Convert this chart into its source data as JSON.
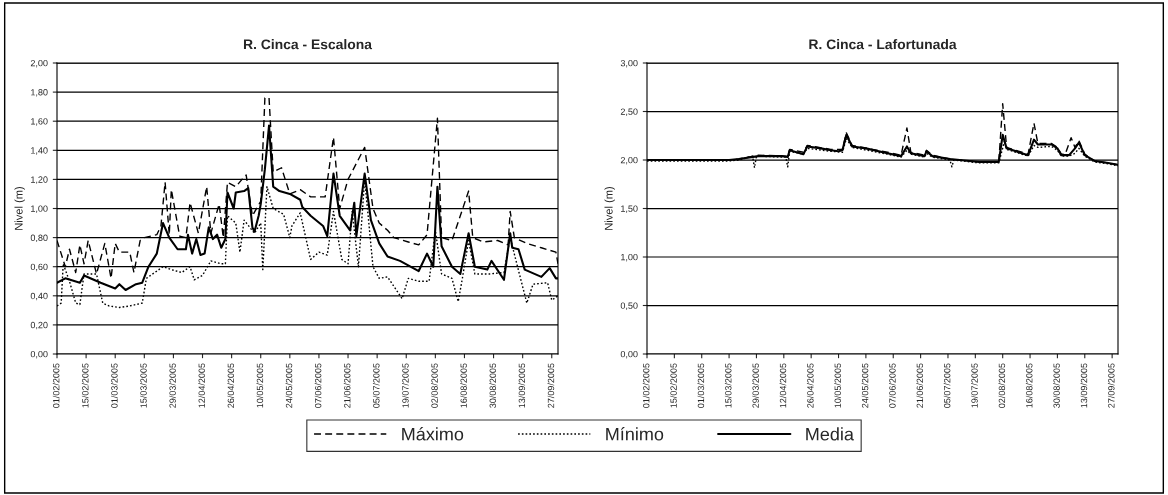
{
  "chart_data": [
    {
      "type": "line",
      "title": "R. Cinca - Escalona",
      "ylabel": "Nivel (m)",
      "legend": "bottom",
      "grid": "y",
      "xlim": [
        "2005-02-01",
        "2005-09-30"
      ],
      "xticks": [
        {
          "value": "2005-02-01",
          "label": "01/02/2005"
        },
        {
          "value": "2005-02-15",
          "label": "15/02/2005"
        },
        {
          "value": "2005-03-01",
          "label": "01/03/2005"
        },
        {
          "value": "2005-03-15",
          "label": "15/03/2005"
        },
        {
          "value": "2005-03-29",
          "label": "29/03/2005"
        },
        {
          "value": "2005-04-12",
          "label": "12/04/2005"
        },
        {
          "value": "2005-04-26",
          "label": "26/04/2005"
        },
        {
          "value": "2005-05-10",
          "label": "10/05/2005"
        },
        {
          "value": "2005-05-24",
          "label": "24/05/2005"
        },
        {
          "value": "2005-06-07",
          "label": "07/06/2005"
        },
        {
          "value": "2005-06-21",
          "label": "21/06/2005"
        },
        {
          "value": "2005-07-05",
          "label": "05/07/2005"
        },
        {
          "value": "2005-07-19",
          "label": "19/07/2005"
        },
        {
          "value": "2005-08-02",
          "label": "02/08/2005"
        },
        {
          "value": "2005-08-16",
          "label": "16/08/2005"
        },
        {
          "value": "2005-08-30",
          "label": "30/08/2005"
        },
        {
          "value": "2005-09-13",
          "label": "13/09/2005"
        },
        {
          "value": "2005-09-27",
          "label": "27/09/2005"
        }
      ],
      "ylim": [
        0,
        2
      ],
      "yticks": [
        {
          "value": 0,
          "label": "0,00"
        },
        {
          "value": 0.2,
          "label": "0,20"
        },
        {
          "value": 0.4,
          "label": "0,40"
        },
        {
          "value": 0.6,
          "label": "0,60"
        },
        {
          "value": 0.8,
          "label": "0,80"
        },
        {
          "value": 1.0,
          "label": "1,00"
        },
        {
          "value": 1.2,
          "label": "1,20"
        },
        {
          "value": 1.4,
          "label": "1,40"
        },
        {
          "value": 1.6,
          "label": "1,60"
        },
        {
          "value": 1.8,
          "label": "1,80"
        },
        {
          "value": 2.0,
          "label": "2,00"
        }
      ],
      "series": [
        {
          "name": "Máximo",
          "color": "#000000",
          "line_style": "dashed",
          "x": [
            "2005-02-01",
            "2005-02-05",
            "2005-02-07",
            "2005-02-10",
            "2005-02-12",
            "2005-02-14",
            "2005-02-16",
            "2005-02-20",
            "2005-02-24",
            "2005-02-27",
            "2005-03-01",
            "2005-03-03",
            "2005-03-08",
            "2005-03-10",
            "2005-03-13",
            "2005-03-15",
            "2005-03-21",
            "2005-03-23",
            "2005-03-25",
            "2005-03-27",
            "2005-03-28",
            "2005-04-01",
            "2005-04-04",
            "2005-04-06",
            "2005-04-10",
            "2005-04-14",
            "2005-04-16",
            "2005-04-20",
            "2005-04-22",
            "2005-04-24",
            "2005-04-28",
            "2005-05-01",
            "2005-05-03",
            "2005-05-06",
            "2005-05-10",
            "2005-05-12",
            "2005-05-14",
            "2005-05-16",
            "2005-05-20",
            "2005-05-24",
            "2005-05-29",
            "2005-06-03",
            "2005-06-10",
            "2005-06-14",
            "2005-06-17",
            "2005-06-21",
            "2005-06-29",
            "2005-07-03",
            "2005-07-06",
            "2005-07-10",
            "2005-07-13",
            "2005-07-20",
            "2005-07-25",
            "2005-07-29",
            "2005-08-03",
            "2005-08-05",
            "2005-08-10",
            "2005-08-18",
            "2005-08-20",
            "2005-08-25",
            "2005-09-01",
            "2005-09-06",
            "2005-09-07",
            "2005-09-09",
            "2005-09-15",
            "2005-09-22",
            "2005-09-29",
            "2005-09-30"
          ],
          "values": [
            0.78,
            0.6,
            0.72,
            0.56,
            0.75,
            0.62,
            0.78,
            0.55,
            0.76,
            0.52,
            0.76,
            0.7,
            0.7,
            0.56,
            0.78,
            0.8,
            0.82,
            0.88,
            1.18,
            0.82,
            1.13,
            0.81,
            0.8,
            1.04,
            0.83,
            1.15,
            0.83,
            1.03,
            0.8,
            1.18,
            1.15,
            1.2,
            1.23,
            0.95,
            1.05,
            1.76,
            1.76,
            1.25,
            1.28,
            1.1,
            1.13,
            1.08,
            1.08,
            1.49,
            1.0,
            1.2,
            1.42,
            1.0,
            0.9,
            0.85,
            0.8,
            0.77,
            0.75,
            0.82,
            1.62,
            0.8,
            0.78,
            1.12,
            0.8,
            0.77,
            0.78,
            0.75,
            0.98,
            0.8,
            0.76,
            0.73,
            0.7,
            0.62
          ]
        },
        {
          "name": "Mínimo",
          "color": "#000000",
          "line_style": "dotted",
          "x": [
            "2005-02-01",
            "2005-02-03",
            "2005-02-04",
            "2005-02-07",
            "2005-02-10",
            "2005-02-12",
            "2005-02-14",
            "2005-02-20",
            "2005-02-23",
            "2005-02-26",
            "2005-03-03",
            "2005-03-08",
            "2005-03-14",
            "2005-03-16",
            "2005-03-21",
            "2005-03-24",
            "2005-03-28",
            "2005-04-02",
            "2005-04-06",
            "2005-04-08",
            "2005-04-12",
            "2005-04-16",
            "2005-04-21",
            "2005-04-23",
            "2005-04-24",
            "2005-04-28",
            "2005-04-30",
            "2005-05-02",
            "2005-05-07",
            "2005-05-10",
            "2005-05-11",
            "2005-05-13",
            "2005-05-16",
            "2005-05-21",
            "2005-05-24",
            "2005-05-25",
            "2005-05-29",
            "2005-06-03",
            "2005-06-07",
            "2005-06-11",
            "2005-06-14",
            "2005-06-18",
            "2005-06-21",
            "2005-06-23",
            "2005-06-26",
            "2005-06-29",
            "2005-07-03",
            "2005-07-06",
            "2005-07-10",
            "2005-07-17",
            "2005-07-20",
            "2005-07-25",
            "2005-07-30",
            "2005-08-02",
            "2005-08-05",
            "2005-08-10",
            "2005-08-13",
            "2005-08-15",
            "2005-08-18",
            "2005-08-21",
            "2005-08-28",
            "2005-09-04",
            "2005-09-07",
            "2005-09-10",
            "2005-09-15",
            "2005-09-18",
            "2005-09-25",
            "2005-09-27",
            "2005-09-30"
          ],
          "values": [
            0.33,
            0.35,
            0.62,
            0.5,
            0.35,
            0.34,
            0.55,
            0.55,
            0.35,
            0.33,
            0.32,
            0.33,
            0.35,
            0.52,
            0.57,
            0.6,
            0.58,
            0.56,
            0.6,
            0.51,
            0.54,
            0.64,
            0.62,
            0.62,
            0.95,
            0.9,
            0.7,
            0.92,
            0.83,
            0.9,
            0.58,
            1.15,
            1.0,
            0.96,
            0.8,
            0.88,
            0.97,
            0.65,
            0.7,
            0.68,
            0.98,
            0.65,
            0.62,
            0.98,
            0.6,
            1.2,
            0.6,
            0.52,
            0.53,
            0.38,
            0.52,
            0.5,
            0.5,
            0.85,
            0.55,
            0.52,
            0.36,
            0.52,
            0.78,
            0.55,
            0.55,
            0.56,
            0.8,
            0.63,
            0.35,
            0.48,
            0.49,
            0.37,
            0.4
          ]
        },
        {
          "name": "Media",
          "color": "#000000",
          "line_style": "solid",
          "x": [
            "2005-02-01",
            "2005-02-05",
            "2005-02-12",
            "2005-02-14",
            "2005-02-22",
            "2005-03-01",
            "2005-03-03",
            "2005-03-06",
            "2005-03-11",
            "2005-03-14",
            "2005-03-17",
            "2005-03-21",
            "2005-03-24",
            "2005-03-27",
            "2005-03-31",
            "2005-04-04",
            "2005-04-05",
            "2005-04-07",
            "2005-04-09",
            "2005-04-11",
            "2005-04-13",
            "2005-04-15",
            "2005-04-17",
            "2005-04-19",
            "2005-04-21",
            "2005-04-23",
            "2005-04-24",
            "2005-04-27",
            "2005-04-28",
            "2005-05-02",
            "2005-05-04",
            "2005-05-06",
            "2005-05-07",
            "2005-05-09",
            "2005-05-10",
            "2005-05-12",
            "2005-05-14",
            "2005-05-16",
            "2005-05-19",
            "2005-05-24",
            "2005-05-29",
            "2005-05-30",
            "2005-06-03",
            "2005-06-09",
            "2005-06-11",
            "2005-06-14",
            "2005-06-17",
            "2005-06-22",
            "2005-06-24",
            "2005-06-25",
            "2005-06-29",
            "2005-07-02",
            "2005-07-06",
            "2005-07-10",
            "2005-07-16",
            "2005-07-25",
            "2005-07-29",
            "2005-08-01",
            "2005-08-03",
            "2005-08-05",
            "2005-08-10",
            "2005-08-14",
            "2005-08-18",
            "2005-08-21",
            "2005-08-27",
            "2005-08-29",
            "2005-09-04",
            "2005-09-07",
            "2005-09-08",
            "2005-09-11",
            "2005-09-14",
            "2005-09-22",
            "2005-09-26",
            "2005-09-29",
            "2005-09-30"
          ],
          "values": [
            0.49,
            0.52,
            0.49,
            0.54,
            0.49,
            0.45,
            0.48,
            0.44,
            0.48,
            0.49,
            0.6,
            0.69,
            0.9,
            0.8,
            0.72,
            0.72,
            0.82,
            0.69,
            0.79,
            0.68,
            0.69,
            0.87,
            0.79,
            0.82,
            0.73,
            0.79,
            1.11,
            1.0,
            1.11,
            1.12,
            1.14,
            0.87,
            0.84,
            0.95,
            1.03,
            1.27,
            1.57,
            1.15,
            1.12,
            1.1,
            1.06,
            1.01,
            0.95,
            0.88,
            0.81,
            1.24,
            0.95,
            0.85,
            1.04,
            0.81,
            1.24,
            0.92,
            0.76,
            0.67,
            0.64,
            0.57,
            0.69,
            0.6,
            1.15,
            0.74,
            0.6,
            0.55,
            0.83,
            0.6,
            0.58,
            0.64,
            0.51,
            0.83,
            0.73,
            0.72,
            0.58,
            0.53,
            0.59,
            0.52,
            0.52
          ]
        }
      ]
    },
    {
      "type": "line",
      "title": "R. Cinca - Lafortunada",
      "ylabel": "Nivel (m)",
      "grid": "y",
      "xlim": [
        "2005-02-01",
        "2005-09-30"
      ],
      "xticks": [
        {
          "value": "2005-02-01",
          "label": "01/02/2005"
        },
        {
          "value": "2005-02-15",
          "label": "15/02/2005"
        },
        {
          "value": "2005-03-01",
          "label": "01/03/2005"
        },
        {
          "value": "2005-03-15",
          "label": "15/03/2005"
        },
        {
          "value": "2005-03-29",
          "label": "29/03/2005"
        },
        {
          "value": "2005-04-12",
          "label": "12/04/2005"
        },
        {
          "value": "2005-04-26",
          "label": "26/04/2005"
        },
        {
          "value": "2005-05-10",
          "label": "10/05/2005"
        },
        {
          "value": "2005-05-24",
          "label": "24/05/2005"
        },
        {
          "value": "2005-06-07",
          "label": "07/06/2005"
        },
        {
          "value": "2005-06-21",
          "label": "21/06/2005"
        },
        {
          "value": "2005-07-05",
          "label": "05/07/2005"
        },
        {
          "value": "2005-07-19",
          "label": "19/07/2005"
        },
        {
          "value": "2005-08-02",
          "label": "02/08/2005"
        },
        {
          "value": "2005-08-16",
          "label": "16/08/2005"
        },
        {
          "value": "2005-08-30",
          "label": "30/08/2005"
        },
        {
          "value": "2005-09-13",
          "label": "13/09/2005"
        },
        {
          "value": "2005-09-27",
          "label": "27/09/2005"
        }
      ],
      "ylim": [
        0,
        3
      ],
      "yticks": [
        {
          "value": 0,
          "label": "0,00"
        },
        {
          "value": 0.5,
          "label": "0,50"
        },
        {
          "value": 1.0,
          "label": "1,00"
        },
        {
          "value": 1.5,
          "label": "1,50"
        },
        {
          "value": 2.0,
          "label": "2,00"
        },
        {
          "value": 2.5,
          "label": "2,50"
        },
        {
          "value": 3.0,
          "label": "3,00"
        }
      ],
      "series": [
        {
          "color": "#000000",
          "line_style": "dashed",
          "x": [
            "2005-02-01",
            "2005-03-15",
            "2005-03-20",
            "2005-03-30",
            "2005-04-14",
            "2005-04-15",
            "2005-04-22",
            "2005-04-24",
            "2005-05-06",
            "2005-05-12",
            "2005-05-14",
            "2005-05-17",
            "2005-06-04",
            "2005-06-11",
            "2005-06-14",
            "2005-06-16",
            "2005-06-23",
            "2005-06-24",
            "2005-06-27",
            "2005-07-06",
            "2005-07-21",
            "2005-07-31",
            "2005-08-02",
            "2005-08-04",
            "2005-08-15",
            "2005-08-18",
            "2005-08-20",
            "2005-08-27",
            "2005-08-30",
            "2005-09-01",
            "2005-09-03",
            "2005-09-06",
            "2005-09-08",
            "2005-09-10",
            "2005-09-13",
            "2005-09-18",
            "2005-09-25",
            "2005-09-30"
          ],
          "values": [
            2.0,
            2.0,
            2.01,
            2.05,
            2.04,
            2.11,
            2.08,
            2.15,
            2.11,
            2.11,
            2.28,
            2.15,
            2.08,
            2.05,
            2.33,
            2.08,
            2.05,
            2.1,
            2.05,
            2.01,
            1.98,
            1.98,
            2.58,
            2.13,
            2.06,
            2.38,
            2.17,
            2.17,
            2.13,
            2.06,
            2.06,
            2.23,
            2.13,
            2.2,
            2.06,
            1.99,
            1.97,
            1.95
          ]
        },
        {
          "color": "#000000",
          "line_style": "dotted",
          "x": [
            "2005-02-01",
            "2005-03-15",
            "2005-03-20",
            "2005-03-27",
            "2005-03-28",
            "2005-03-29",
            "2005-04-11",
            "2005-04-13",
            "2005-04-14",
            "2005-04-15",
            "2005-04-22",
            "2005-04-24",
            "2005-05-06",
            "2005-05-12",
            "2005-05-14",
            "2005-05-17",
            "2005-06-04",
            "2005-06-11",
            "2005-06-14",
            "2005-06-16",
            "2005-06-23",
            "2005-06-24",
            "2005-06-27",
            "2005-07-06",
            "2005-07-07",
            "2005-07-08",
            "2005-07-21",
            "2005-07-31",
            "2005-08-03",
            "2005-08-04",
            "2005-08-15",
            "2005-08-18",
            "2005-08-20",
            "2005-08-27",
            "2005-08-30",
            "2005-09-01",
            "2005-09-05",
            "2005-09-08",
            "2005-09-10",
            "2005-09-13",
            "2005-09-18",
            "2005-09-25",
            "2005-09-30"
          ],
          "values": [
            1.99,
            1.99,
            2.0,
            2.04,
            1.92,
            2.04,
            2.03,
            2.03,
            1.93,
            2.09,
            2.06,
            2.12,
            2.09,
            2.08,
            2.22,
            2.13,
            2.06,
            2.03,
            2.1,
            2.06,
            2.03,
            2.07,
            2.03,
            2.0,
            1.93,
            2.0,
            1.97,
            1.97,
            2.2,
            2.11,
            2.04,
            2.15,
            2.13,
            2.14,
            2.1,
            2.04,
            2.04,
            2.07,
            2.12,
            2.04,
            1.98,
            1.96,
            1.94
          ]
        },
        {
          "color": "#000000",
          "line_style": "solid",
          "x": [
            "2005-02-01",
            "2005-03-15",
            "2005-03-20",
            "2005-03-30",
            "2005-04-11",
            "2005-04-14",
            "2005-04-15",
            "2005-04-22",
            "2005-04-24",
            "2005-05-01",
            "2005-05-06",
            "2005-05-10",
            "2005-05-12",
            "2005-05-14",
            "2005-05-17",
            "2005-05-24",
            "2005-06-04",
            "2005-06-11",
            "2005-06-14",
            "2005-06-16",
            "2005-06-23",
            "2005-06-24",
            "2005-06-27",
            "2005-07-06",
            "2005-07-21",
            "2005-07-31",
            "2005-08-02",
            "2005-08-04",
            "2005-08-15",
            "2005-08-18",
            "2005-08-20",
            "2005-08-27",
            "2005-08-30",
            "2005-09-01",
            "2005-09-05",
            "2005-09-08",
            "2005-09-10",
            "2005-09-13",
            "2005-09-18",
            "2005-09-25",
            "2005-09-30"
          ],
          "values": [
            2.0,
            2.0,
            2.01,
            2.04,
            2.04,
            2.03,
            2.1,
            2.06,
            2.14,
            2.12,
            2.1,
            2.09,
            2.1,
            2.26,
            2.14,
            2.12,
            2.07,
            2.04,
            2.14,
            2.07,
            2.04,
            2.09,
            2.04,
            2.01,
            1.98,
            1.98,
            2.26,
            2.12,
            2.05,
            2.21,
            2.16,
            2.16,
            2.12,
            2.05,
            2.05,
            2.12,
            2.18,
            2.05,
            1.99,
            1.97,
            1.95
          ]
        }
      ]
    }
  ]
}
